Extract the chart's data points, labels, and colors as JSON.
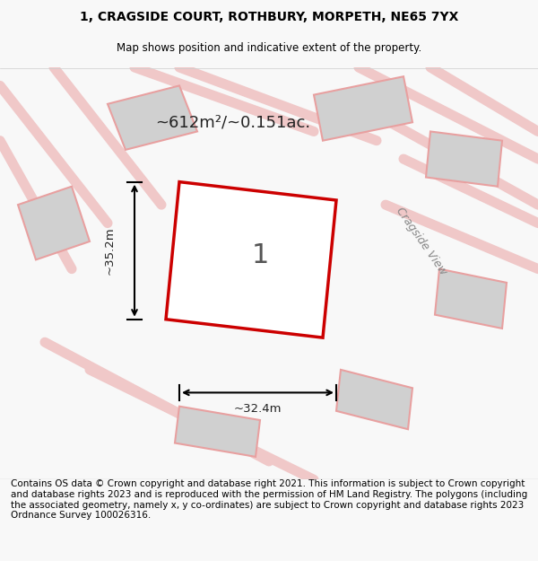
{
  "title_line1": "1, CRAGSIDE COURT, ROTHBURY, MORPETH, NE65 7YX",
  "title_line2": "Map shows position and indicative extent of the property.",
  "area_text": "~612m²/~0.151ac.",
  "label_number": "1",
  "dim_width": "~32.4m",
  "dim_height": "~35.2m",
  "street_label": "Cragside View",
  "footer_text": "Contains OS data © Crown copyright and database right 2021. This information is subject to Crown copyright and database rights 2023 and is reproduced with the permission of HM Land Registry. The polygons (including the associated geometry, namely x, y co-ordinates) are subject to Crown copyright and database rights 2023 Ordnance Survey 100026316.",
  "bg_color": "#f8f8f8",
  "map_bg": "#ffffff",
  "plot_color_fill": "#ffffff",
  "plot_color_edge": "#cc0000",
  "neighbor_fill": "#d0d0d0",
  "neighbor_edge": "#e8a0a0",
  "road_color": "#f0c8c8",
  "title_fontsize": 10,
  "footer_fontsize": 7.5
}
